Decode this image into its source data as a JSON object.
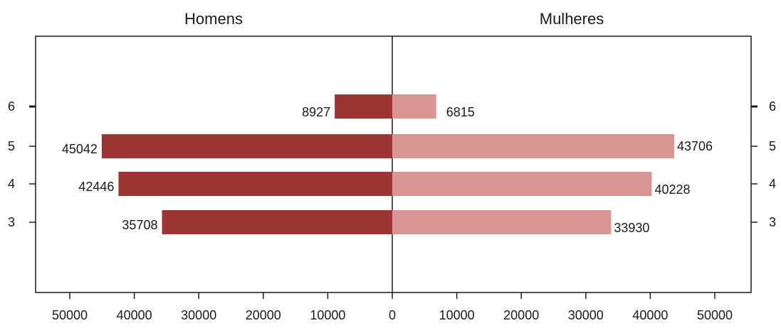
{
  "chart_data": {
    "type": "bar",
    "orientation": "horizontal",
    "layout": "back-to-back pyramid",
    "categories": [
      "3",
      "4",
      "5",
      "6"
    ],
    "series": [
      {
        "name": "Homens",
        "side": "left",
        "values": [
          35708,
          42446,
          45042,
          8927
        ],
        "color": "#9e3433"
      },
      {
        "name": "Mulheres",
        "side": "right",
        "values": [
          33930,
          40228,
          43706,
          6815
        ],
        "color": "#d99592"
      }
    ],
    "xlim": [
      -55000,
      55000
    ],
    "x_ticks": [
      50000,
      40000,
      30000,
      20000,
      10000,
      0,
      10000,
      20000,
      30000,
      40000,
      50000
    ],
    "x_tick_values": [
      -50000,
      -40000,
      -30000,
      -20000,
      -10000,
      0,
      10000,
      20000,
      30000,
      40000,
      50000
    ],
    "y_ticks": [
      "3",
      "4",
      "5",
      "6"
    ],
    "grid": false,
    "legend": "none",
    "panel_titles": {
      "left": "Homens",
      "right": "Mulheres"
    }
  }
}
